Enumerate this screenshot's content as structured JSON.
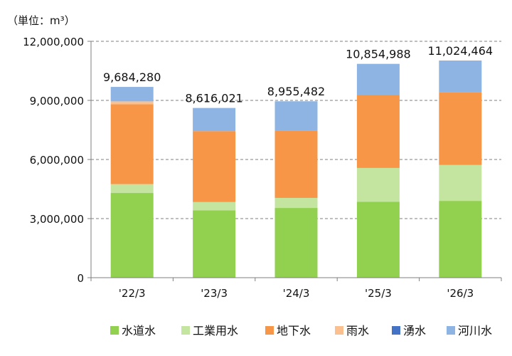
{
  "chart_data": {
    "type": "bar",
    "stacked": true,
    "unit_label": "（単位：m³）",
    "categories": [
      "'22/3",
      "'23/3",
      "'24/3",
      "'25/3",
      "'26/3"
    ],
    "series": [
      {
        "name": "水道水",
        "color": "#92d050",
        "values": [
          4300000,
          3420000,
          3540000,
          3850000,
          3900000
        ]
      },
      {
        "name": "工業用水",
        "color": "#c4e59f",
        "values": [
          450000,
          420000,
          510000,
          1720000,
          1820000
        ]
      },
      {
        "name": "地下水",
        "color": "#f79646",
        "values": [
          4050000,
          3600000,
          3410000,
          3720000,
          3690000
        ]
      },
      {
        "name": "雨水",
        "color": "#fac090",
        "values": [
          150000,
          0,
          0,
          0,
          0
        ]
      },
      {
        "name": "湧水",
        "color": "#4472c4",
        "values": [
          0,
          0,
          0,
          0,
          0
        ]
      },
      {
        "name": "河川水",
        "color": "#8eb4e3",
        "values": [
          734280,
          1176021,
          1495482,
          1564988,
          1614464
        ]
      }
    ],
    "totals": [
      "9,684,280",
      "8,616,021",
      "8,955,482",
      "10,854,988",
      "11,024,464"
    ],
    "ylim": [
      0,
      12000000
    ],
    "yticks": [
      0,
      3000000,
      6000000,
      9000000,
      12000000
    ],
    "ytick_labels": [
      "0",
      "3,000,000",
      "6,000,000",
      "9,000,000",
      "12,000,000"
    ],
    "grid": true,
    "legend_position": "bottom"
  }
}
